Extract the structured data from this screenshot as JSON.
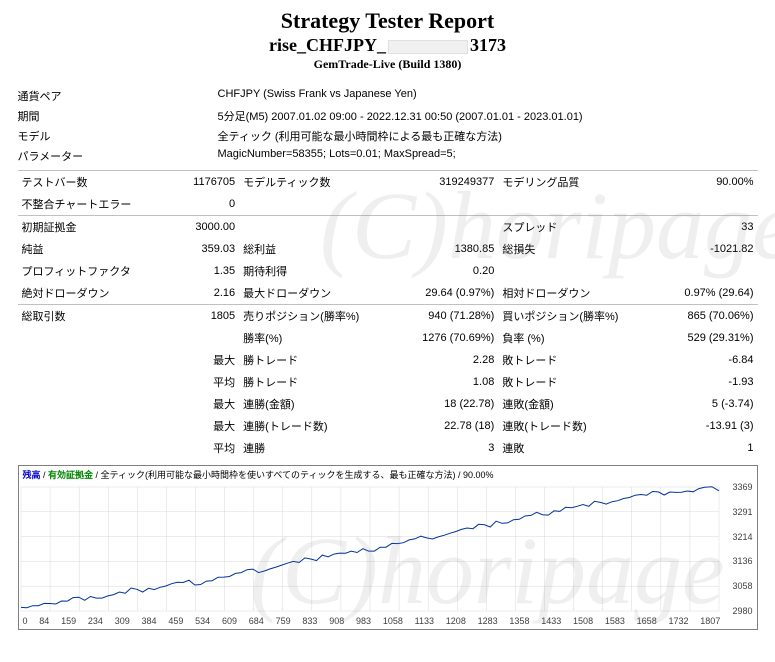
{
  "header": {
    "title": "Strategy Tester Report",
    "subtitle_prefix": "rise_CHFJPY_",
    "subtitle_suffix": "3173",
    "broker": "GemTrade-Live (Build 1380)"
  },
  "meta": {
    "symbol_label": "通貨ペア",
    "symbol_value": "CHFJPY (Swiss Frank vs Japanese Yen)",
    "period_label": "期間",
    "period_value": "5分足(M5) 2007.01.02 09:00 - 2022.12.31 00:50 (2007.01.01 - 2023.01.01)",
    "model_label": "モデル",
    "model_value": "全ティック (利用可能な最小時間枠による最も正確な方法)",
    "params_label": "パラメーター",
    "params_value": "MagicNumber=58355; Lots=0.01; MaxSpread=5;"
  },
  "rows": [
    {
      "section": true,
      "l1": "テストバー数",
      "v1": "1176705",
      "l2": "モデルティック数",
      "v2": "319249377",
      "l3": "モデリング品質",
      "v3": "90.00%"
    },
    {
      "l1": "不整合チャートエラー",
      "v1": "0",
      "l2": "",
      "v2": "",
      "l3": "",
      "v3": ""
    },
    {
      "section": true,
      "l1": "初期証拠金",
      "v1": "3000.00",
      "l2": "",
      "v2": "",
      "l3": "スプレッド",
      "v3": "33"
    },
    {
      "l1": "純益",
      "v1": "359.03",
      "l2": "総利益",
      "v2": "1380.85",
      "l3": "総損失",
      "v3": "-1021.82"
    },
    {
      "l1": "プロフィットファクタ",
      "v1": "1.35",
      "l2": "期待利得",
      "v2": "0.20",
      "l3": "",
      "v3": ""
    },
    {
      "l1": "絶対ドローダウン",
      "v1": "2.16",
      "l2": "最大ドローダウン",
      "v2": "29.64 (0.97%)",
      "l3": "相対ドローダウン",
      "v3": "0.97% (29.64)"
    },
    {
      "section": true,
      "l1": "総取引数",
      "v1": "1805",
      "l2": "売りポジション(勝率%)",
      "v2": "940 (71.28%)",
      "l3": "買いポジション(勝率%)",
      "v3": "865 (70.06%)"
    },
    {
      "l1": "",
      "v1": "",
      "l2": "勝率(%)",
      "v2": "1276 (70.69%)",
      "l3": "負率 (%)",
      "v3": "529 (29.31%)"
    },
    {
      "l1": "",
      "v1": "最大",
      "l2": "勝トレード",
      "v2": "2.28",
      "l3": "敗トレード",
      "v3": "-6.84"
    },
    {
      "l1": "",
      "v1": "平均",
      "l2": "勝トレード",
      "v2": "1.08",
      "l3": "敗トレード",
      "v3": "-1.93"
    },
    {
      "l1": "",
      "v1": "最大",
      "l2": "連勝(金額)",
      "v2": "18 (22.78)",
      "l3": "連敗(金額)",
      "v3": "5 (-3.74)"
    },
    {
      "l1": "",
      "v1": "最大",
      "l2": "連勝(トレード数)",
      "v2": "22.78 (18)",
      "l3": "連敗(トレード数)",
      "v3": "-13.91 (3)"
    },
    {
      "l1": "",
      "v1": "平均",
      "l2": "連勝",
      "v2": "3",
      "l3": "連敗",
      "v3": "1"
    }
  ],
  "chart": {
    "title_balance": "残高",
    "title_equity": "有効証拠金",
    "title_rest": " / 全ティック(利用可能な最小時間枠を使いすべてのティックを生成する、最も正確な方法) / 90.00%",
    "ylabels": [
      "3369",
      "3291",
      "3214",
      "3136",
      "3058",
      "2980"
    ],
    "xlabels": [
      "0",
      "84",
      "159",
      "234",
      "309",
      "384",
      "459",
      "534",
      "609",
      "684",
      "759",
      "833",
      "908",
      "983",
      "1058",
      "1133",
      "1208",
      "1283",
      "1358",
      "1433",
      "1508",
      "1583",
      "1658",
      "1732",
      "1807"
    ],
    "line_color": "#003399",
    "grid_color": "#d8d8d8",
    "points": [
      [
        0,
        2998
      ],
      [
        30,
        2999
      ],
      [
        60,
        3002
      ],
      [
        90,
        3005
      ],
      [
        120,
        3010
      ],
      [
        150,
        3018
      ],
      [
        180,
        3025
      ],
      [
        210,
        3024
      ],
      [
        240,
        3031
      ],
      [
        270,
        3040
      ],
      [
        300,
        3048
      ],
      [
        330,
        3047
      ],
      [
        360,
        3055
      ],
      [
        390,
        3062
      ],
      [
        420,
        3070
      ],
      [
        450,
        3067
      ],
      [
        480,
        3075
      ],
      [
        510,
        3083
      ],
      [
        540,
        3090
      ],
      [
        570,
        3098
      ],
      [
        600,
        3105
      ],
      [
        630,
        3112
      ],
      [
        660,
        3120
      ],
      [
        690,
        3128
      ],
      [
        720,
        3135
      ],
      [
        750,
        3142
      ],
      [
        780,
        3150
      ],
      [
        810,
        3158
      ],
      [
        840,
        3165
      ],
      [
        870,
        3163
      ],
      [
        900,
        3172
      ],
      [
        930,
        3180
      ],
      [
        960,
        3188
      ],
      [
        990,
        3195
      ],
      [
        1020,
        3203
      ],
      [
        1050,
        3210
      ],
      [
        1080,
        3218
      ],
      [
        1110,
        3225
      ],
      [
        1140,
        3233
      ],
      [
        1170,
        3240
      ],
      [
        1200,
        3248
      ],
      [
        1230,
        3255
      ],
      [
        1260,
        3263
      ],
      [
        1290,
        3270
      ],
      [
        1320,
        3278
      ],
      [
        1350,
        3285
      ],
      [
        1380,
        3293
      ],
      [
        1410,
        3300
      ],
      [
        1440,
        3308
      ],
      [
        1470,
        3312
      ],
      [
        1500,
        3320
      ],
      [
        1530,
        3327
      ],
      [
        1560,
        3333
      ],
      [
        1590,
        3339
      ],
      [
        1620,
        3344
      ],
      [
        1650,
        3350
      ],
      [
        1680,
        3354
      ],
      [
        1710,
        3358
      ],
      [
        1740,
        3355
      ],
      [
        1770,
        3365
      ],
      [
        1807,
        3359
      ]
    ],
    "ymin": 2980,
    "ymax": 3369,
    "xmin": 0,
    "xmax": 1807
  },
  "watermark": "(C)horipage"
}
